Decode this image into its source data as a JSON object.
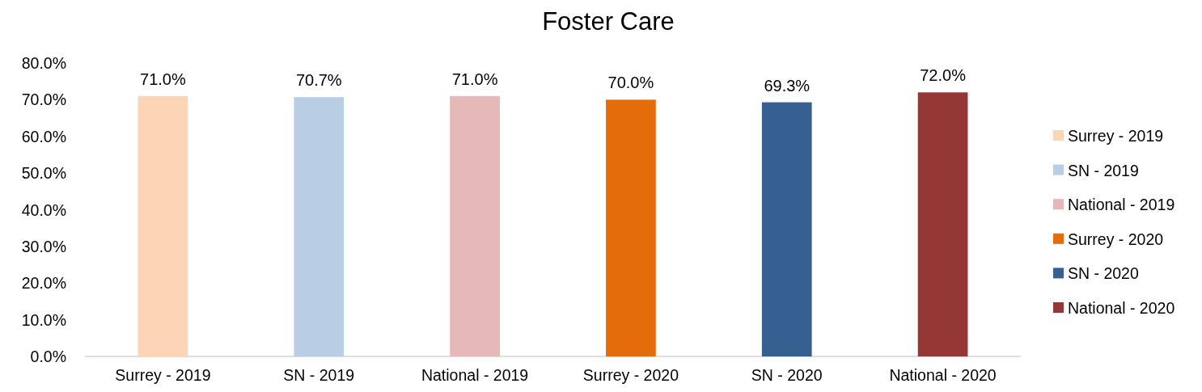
{
  "chart_data": {
    "type": "bar",
    "title": "Foster Care",
    "categories": [
      "Surrey - 2019",
      "SN - 2019",
      "National - 2019",
      "Surrey - 2020",
      "SN - 2020",
      "National - 2020"
    ],
    "series": [
      {
        "name": "Surrey - 2019",
        "color": "#fbd5b5",
        "values": [
          71.0,
          null,
          null,
          null,
          null,
          null
        ],
        "value_labels": [
          "71.0%",
          null,
          null,
          null,
          null,
          null
        ]
      },
      {
        "name": "SN - 2019",
        "color": "#b9cde5",
        "values": [
          null,
          70.7,
          null,
          null,
          null,
          null
        ],
        "value_labels": [
          null,
          "70.7%",
          null,
          null,
          null,
          null
        ]
      },
      {
        "name": "National - 2019",
        "color": "#e6b9b8",
        "values": [
          null,
          null,
          71.0,
          null,
          null,
          null
        ],
        "value_labels": [
          null,
          null,
          "71.0%",
          null,
          null,
          null
        ]
      },
      {
        "name": "Surrey - 2020",
        "color": "#e46c0a",
        "values": [
          null,
          null,
          null,
          70.0,
          null,
          null
        ],
        "value_labels": [
          null,
          null,
          null,
          "70.0%",
          null,
          null
        ]
      },
      {
        "name": "SN - 2020",
        "color": "#366092",
        "values": [
          null,
          null,
          null,
          null,
          69.3,
          null
        ],
        "value_labels": [
          null,
          null,
          null,
          null,
          "69.3%",
          null
        ]
      },
      {
        "name": "National - 2020",
        "color": "#953735",
        "values": [
          null,
          null,
          null,
          null,
          null,
          72.0
        ],
        "value_labels": [
          null,
          null,
          null,
          null,
          null,
          "72.0%"
        ]
      }
    ],
    "ylim": [
      0,
      80
    ],
    "yticks": [
      {
        "value": 0,
        "label": "0.0%"
      },
      {
        "value": 10,
        "label": "10.0%"
      },
      {
        "value": 20,
        "label": "20.0%"
      },
      {
        "value": 30,
        "label": "30.0%"
      },
      {
        "value": 40,
        "label": "40.0%"
      },
      {
        "value": 50,
        "label": "50.0%"
      },
      {
        "value": 60,
        "label": "60.0%"
      },
      {
        "value": 70,
        "label": "70.0%"
      },
      {
        "value": 80,
        "label": "80.0%"
      }
    ],
    "legend": "right"
  }
}
